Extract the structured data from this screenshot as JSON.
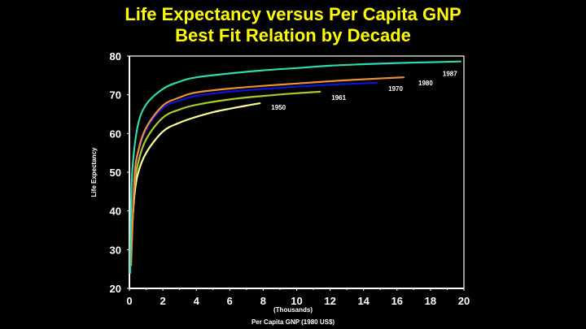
{
  "chart_data": {
    "type": "line",
    "title": "Life Expectancy versus Per Capita GNP",
    "subtitle": "Best Fit Relation by Decade",
    "xlabel": "Per Capita GNP (1980 US$)",
    "xunit_label": "(Thousands)",
    "ylabel": "Life Expectancy",
    "xlim": [
      0,
      20
    ],
    "ylim": [
      20,
      80
    ],
    "xticks": [
      0,
      2,
      4,
      6,
      8,
      10,
      12,
      14,
      16,
      18,
      20
    ],
    "yticks": [
      20,
      30,
      40,
      50,
      60,
      70,
      80
    ],
    "grid": false,
    "series": [
      {
        "name": "1950",
        "color": "#ffffa0",
        "x": [
          0.15,
          0.3,
          0.5,
          1,
          2,
          3,
          4,
          5,
          6,
          7,
          7.8
        ],
        "y": [
          35,
          44,
          49.5,
          55,
          60.5,
          62.8,
          64.3,
          65.5,
          66.4,
          67.2,
          67.8
        ]
      },
      {
        "name": "1961",
        "color": "#a8cc2a",
        "x": [
          0.12,
          0.3,
          0.5,
          1,
          2,
          3,
          4,
          6,
          8,
          10,
          11.4
        ],
        "y": [
          33,
          46,
          52,
          58.5,
          64.1,
          66.2,
          67.4,
          68.8,
          69.7,
          70.4,
          70.8
        ]
      },
      {
        "name": "1970",
        "color": "#1010e0",
        "x": [
          0.1,
          0.3,
          0.5,
          1,
          2,
          3,
          4,
          6,
          8,
          10,
          12,
          14.8
        ],
        "y": [
          28,
          48,
          54.5,
          61,
          66.6,
          68.5,
          69.7,
          70.8,
          71.5,
          72.1,
          72.6,
          73.1
        ]
      },
      {
        "name": "1980",
        "color": "#f09030",
        "x": [
          0.1,
          0.3,
          0.5,
          1,
          2,
          3,
          4,
          6,
          8,
          10,
          12,
          14,
          16.4
        ],
        "y": [
          26,
          48,
          55,
          61.5,
          67.2,
          69.3,
          70.6,
          71.6,
          72.3,
          72.9,
          73.5,
          74,
          74.5
        ]
      },
      {
        "name": "1987",
        "color": "#30d8b0",
        "x": [
          0.05,
          0.1,
          0.2,
          0.5,
          1,
          2,
          3,
          4,
          6,
          8,
          10,
          12,
          14,
          16,
          18,
          19.8
        ],
        "y": [
          24,
          42,
          52,
          62,
          67.5,
          71.5,
          73.4,
          74.5,
          75.5,
          76.3,
          76.9,
          77.5,
          77.9,
          78.2,
          78.4,
          78.6
        ]
      }
    ]
  }
}
